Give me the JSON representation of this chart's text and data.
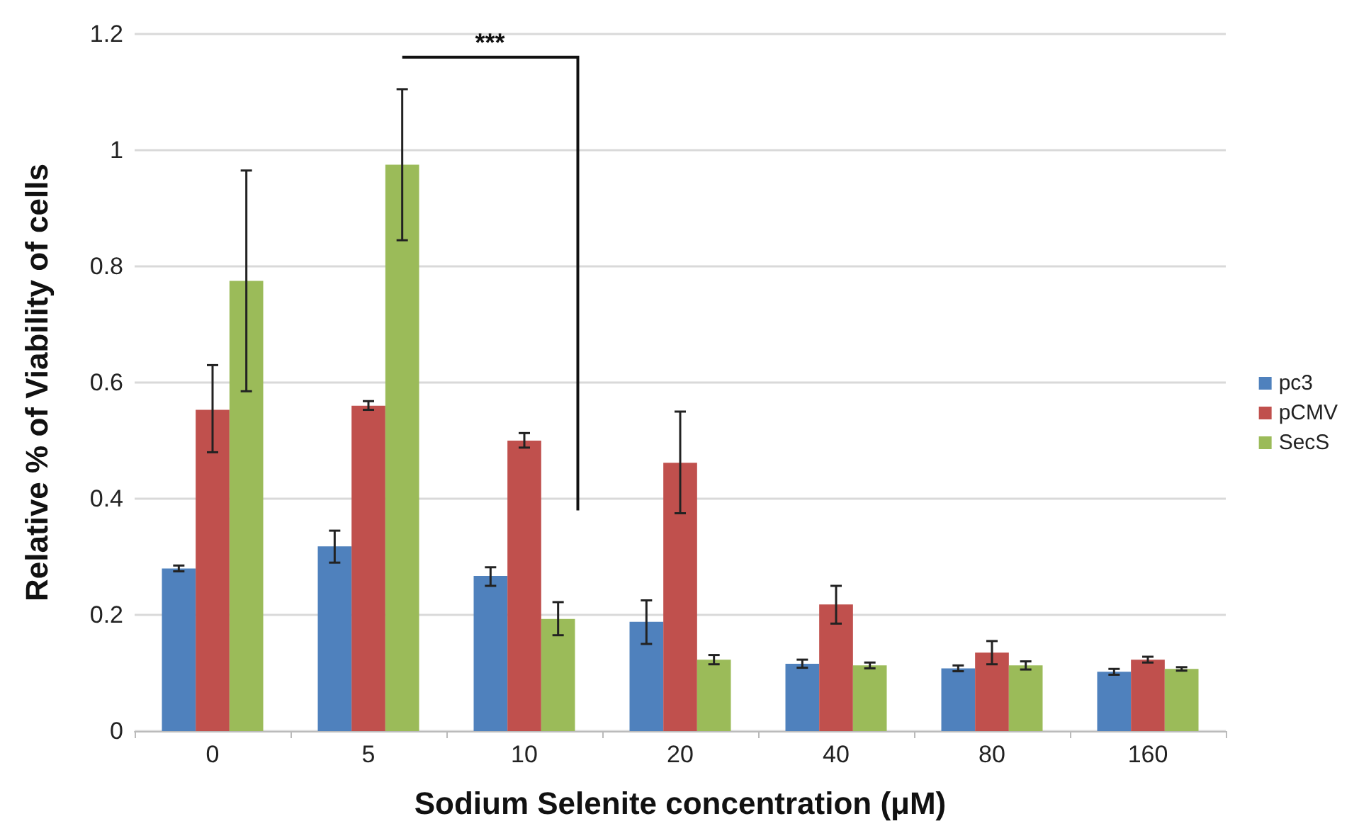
{
  "chart_data": {
    "type": "bar",
    "xlabel": "Sodium Selenite concentration (μM)",
    "ylabel": "Relative % of Viability of cells",
    "categories": [
      "0",
      "5",
      "10",
      "20",
      "40",
      "80",
      "160"
    ],
    "series": [
      {
        "name": "pc3",
        "color": "#4f81bd",
        "values": [
          0.28,
          0.318,
          0.267,
          0.188,
          0.116,
          0.108,
          0.102
        ],
        "errors": [
          0.005,
          [
            0.29,
            0.345
          ],
          [
            0.25,
            0.282
          ],
          [
            0.15,
            0.225
          ],
          0.007,
          0.005,
          0.005
        ]
      },
      {
        "name": "pCMV",
        "color": "#c0504d",
        "values": [
          0.553,
          0.56,
          0.5,
          0.462,
          0.218,
          0.135,
          0.123
        ],
        "errors": [
          [
            0.48,
            0.63
          ],
          [
            0.553,
            0.568
          ],
          [
            0.488,
            0.513
          ],
          [
            0.375,
            0.55
          ],
          [
            0.185,
            0.25
          ],
          [
            0.115,
            0.155
          ],
          0.005
        ]
      },
      {
        "name": "SecS",
        "color": "#9bbb59",
        "values": [
          0.775,
          0.975,
          0.193,
          0.123,
          0.113,
          0.113,
          0.107
        ],
        "errors": [
          [
            0.585,
            0.965
          ],
          [
            0.845,
            1.105
          ],
          [
            0.165,
            0.222
          ],
          [
            0.115,
            0.131
          ],
          0.005,
          0.007,
          0.003
        ]
      }
    ],
    "ylim": [
      0,
      1.2
    ],
    "yticks": [
      0,
      0.2,
      0.4,
      0.6,
      0.8,
      1,
      1.2
    ],
    "grid": "y",
    "legend": "right",
    "annotations": [
      "***"
    ]
  }
}
